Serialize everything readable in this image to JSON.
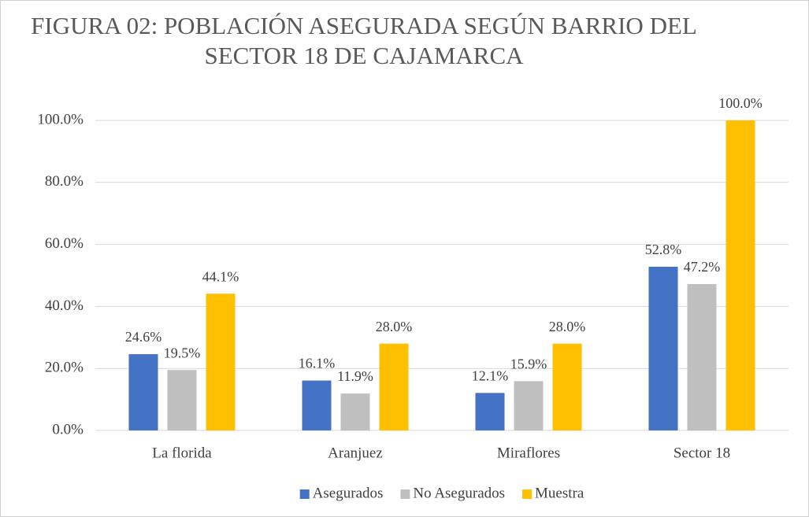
{
  "chart_data": {
    "type": "bar",
    "title": "FIGURA 02: POBLACIÓN ASEGURADA SEGÚN BARRIO DEL SECTOR 18 DE CAJAMARCA",
    "categories": [
      "La florida",
      "Aranjuez",
      "Miraflores",
      "Sector 18"
    ],
    "series": [
      {
        "name": "Asegurados",
        "color": "#4472c4",
        "values": [
          24.6,
          16.1,
          12.1,
          52.8
        ],
        "value_labels": [
          "24.6%",
          "16.1%",
          "12.1%",
          "52.8%"
        ]
      },
      {
        "name": "No Asegurados",
        "color": "#bfbfbf",
        "values": [
          19.5,
          11.9,
          15.9,
          47.2
        ],
        "value_labels": [
          "19.5%",
          "11.9%",
          "15.9%",
          "47.2%"
        ]
      },
      {
        "name": "Muestra",
        "color": "#ffc000",
        "values": [
          44.1,
          28.0,
          28.0,
          100.0
        ],
        "value_labels": [
          "44.1%",
          "28.0%",
          "28.0%",
          "100.0%"
        ]
      }
    ],
    "ylim": [
      0,
      100
    ],
    "yticks": [
      {
        "value": 0,
        "label": "0.0%"
      },
      {
        "value": 20,
        "label": "20.0%"
      },
      {
        "value": 40,
        "label": "40.0%"
      },
      {
        "value": 60,
        "label": "60.0%"
      },
      {
        "value": 80,
        "label": "80.0%"
      },
      {
        "value": 100,
        "label": "100.0%"
      }
    ],
    "grid": true,
    "legend": "bottom"
  }
}
